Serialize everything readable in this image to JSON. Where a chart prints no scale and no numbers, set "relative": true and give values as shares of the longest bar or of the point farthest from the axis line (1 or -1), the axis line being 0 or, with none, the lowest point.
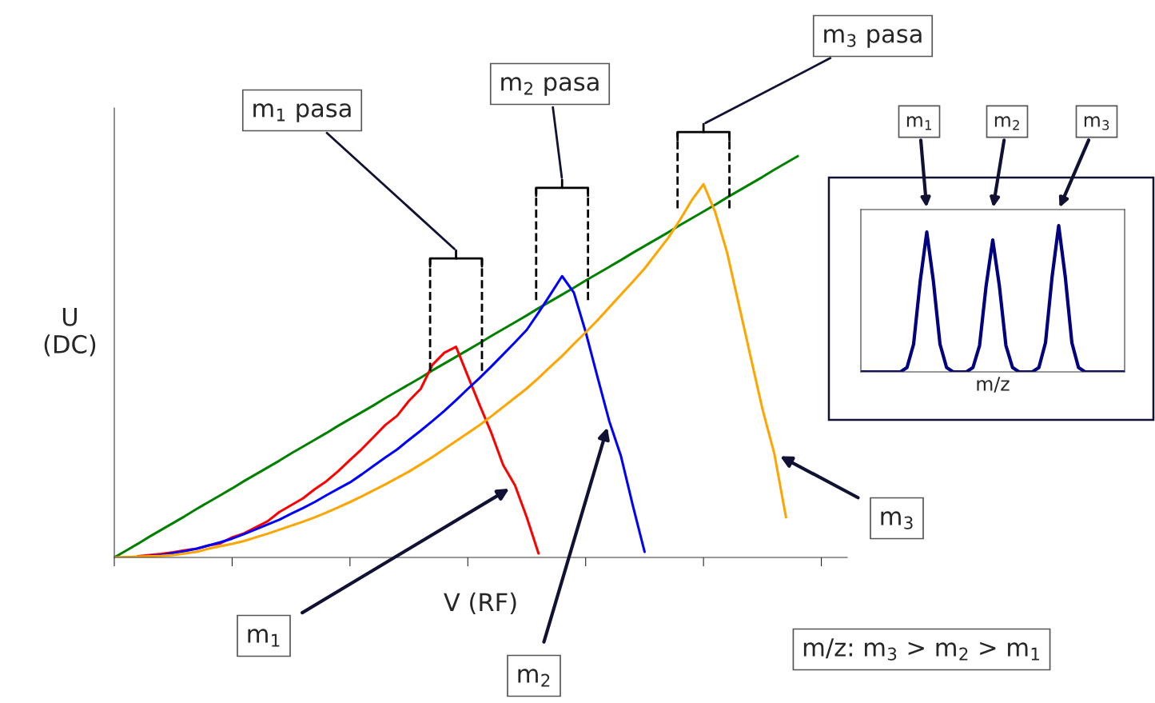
{
  "chart_data": [
    {
      "type": "line",
      "relative": true,
      "xlabel": "V (RF)",
      "ylabel": "U\n(DC)",
      "grid": false,
      "legend": false,
      "categories": [
        null,
        null,
        null,
        null,
        null,
        null,
        null,
        null,
        null,
        null,
        null,
        null,
        null,
        null,
        null,
        null,
        null,
        null,
        null,
        null,
        null,
        null,
        null,
        null,
        null,
        null,
        null,
        null,
        null,
        null,
        null,
        null,
        null,
        null,
        null,
        null,
        null,
        null,
        null,
        null,
        null,
        null,
        null,
        null,
        null,
        null,
        null,
        null,
        null,
        null,
        null,
        null,
        null,
        null,
        null,
        null,
        null,
        null,
        null
      ],
      "series": [
        {
          "color": "#008000",
          "values": [
            0,
            0.017,
            0.034,
            0.052,
            0.069,
            0.086,
            0.103,
            0.121,
            0.138,
            0.155,
            0.172,
            0.19,
            0.207,
            0.224,
            0.241,
            0.259,
            0.276,
            0.293,
            0.31,
            0.328,
            0.345,
            0.362,
            0.379,
            0.397,
            0.414,
            0.431,
            0.448,
            0.466,
            0.483,
            0.5,
            0.517,
            0.534,
            0.552,
            0.569,
            0.586,
            0.603,
            0.621,
            0.638,
            0.655,
            0.672,
            0.69,
            0.707,
            0.724,
            0.741,
            0.759,
            0.776,
            0.793,
            0.81,
            0.828,
            0.845,
            0.862,
            0.879,
            0.897,
            0.914,
            0.931,
            0.948,
            0.966,
            0.983,
            1.0
          ]
        },
        {
          "color": "#ff0000",
          "values": [
            null,
            null,
            0.003,
            0.006,
            0.009,
            0.013,
            0.018,
            0.022,
            0.03,
            0.035,
            0.05,
            0.06,
            0.075,
            0.09,
            0.113,
            0.13,
            0.147,
            0.17,
            0.19,
            0.215,
            0.243,
            0.27,
            0.3,
            0.33,
            0.353,
            0.39,
            0.42,
            0.48,
            0.51,
            0.525,
            0.452,
            0.38,
            0.31,
            0.23,
            0.18,
            0.1,
            0.01,
            null,
            null,
            null,
            null,
            null,
            null,
            null,
            null,
            null,
            null,
            null,
            null,
            null,
            null,
            null,
            null,
            null,
            null,
            null,
            null,
            null,
            null
          ]
        },
        {
          "color": "#0000ff",
          "values": [
            null,
            null,
            null,
            0.004,
            0.006,
            0.011,
            0.016,
            0.022,
            0.03,
            0.038,
            0.047,
            0.058,
            0.07,
            0.082,
            0.094,
            0.109,
            0.123,
            0.138,
            0.155,
            0.171,
            0.187,
            0.207,
            0.228,
            0.249,
            0.269,
            0.293,
            0.316,
            0.34,
            0.365,
            0.392,
            0.42,
            0.447,
            0.476,
            0.506,
            0.536,
            0.567,
            0.61,
            0.655,
            0.701,
            0.66,
            0.562,
            0.45,
            0.34,
            0.252,
            0.13,
            0.014,
            null,
            null,
            null,
            null,
            null,
            null,
            null,
            null,
            null,
            null,
            null,
            null,
            null
          ]
        },
        {
          "color": "#ffa500",
          "values": [
            0,
            0.001,
            0.002,
            0.003,
            0.004,
            0.006,
            0.01,
            0.014,
            0.022,
            0.028,
            0.034,
            0.041,
            0.05,
            0.059,
            0.069,
            0.079,
            0.089,
            0.1,
            0.112,
            0.125,
            0.138,
            0.152,
            0.167,
            0.182,
            0.198,
            0.214,
            0.232,
            0.25,
            0.27,
            0.29,
            0.31,
            0.33,
            0.352,
            0.375,
            0.398,
            0.421,
            0.447,
            0.475,
            0.502,
            0.532,
            0.561,
            0.591,
            0.623,
            0.655,
            0.687,
            0.72,
            0.758,
            0.796,
            0.841,
            0.89,
            0.93,
            0.86,
            0.76,
            0.63,
            0.5,
            0.37,
            0.26,
            0.1,
            null
          ]
        }
      ],
      "annotations": [
        "m$_{1}$ pasa",
        "m$_{2}$ pasa",
        "m$_{3}$ pasa",
        "m$_{1}$",
        "m$_{2}$",
        "m$_{3}$",
        "m/z: m$_{3}$ > m$_{2}$ > m$_{1}$"
      ]
    },
    {
      "type": "line",
      "relative": true,
      "xlabel": "m/z",
      "grid": false,
      "legend": false,
      "categories": [
        null,
        null,
        null,
        null,
        null,
        null,
        null,
        null,
        null,
        null,
        null,
        null,
        null,
        null,
        null,
        null,
        null,
        null,
        null,
        null,
        null,
        null,
        null,
        null,
        null,
        null,
        null,
        null,
        null,
        null,
        null,
        null,
        null,
        null,
        null,
        null,
        null,
        null,
        null,
        null,
        null
      ],
      "series": [
        {
          "color": "#000080",
          "values": [
            0,
            0,
            0,
            0,
            0,
            0,
            0,
            0.03,
            0.19,
            0.62,
            0.956,
            0.62,
            0.19,
            0.03,
            0,
            0,
            0,
            0.03,
            0.18,
            0.59,
            0.902,
            0.59,
            0.18,
            0.03,
            0,
            0,
            0,
            0.03,
            0.2,
            0.65,
            1,
            0.65,
            0.2,
            0.03,
            0,
            0,
            0,
            0,
            0,
            0,
            0
          ]
        }
      ],
      "annotations": [
        "m$_{1}$",
        "m$_{2}$",
        "m$_{3}$"
      ]
    }
  ]
}
